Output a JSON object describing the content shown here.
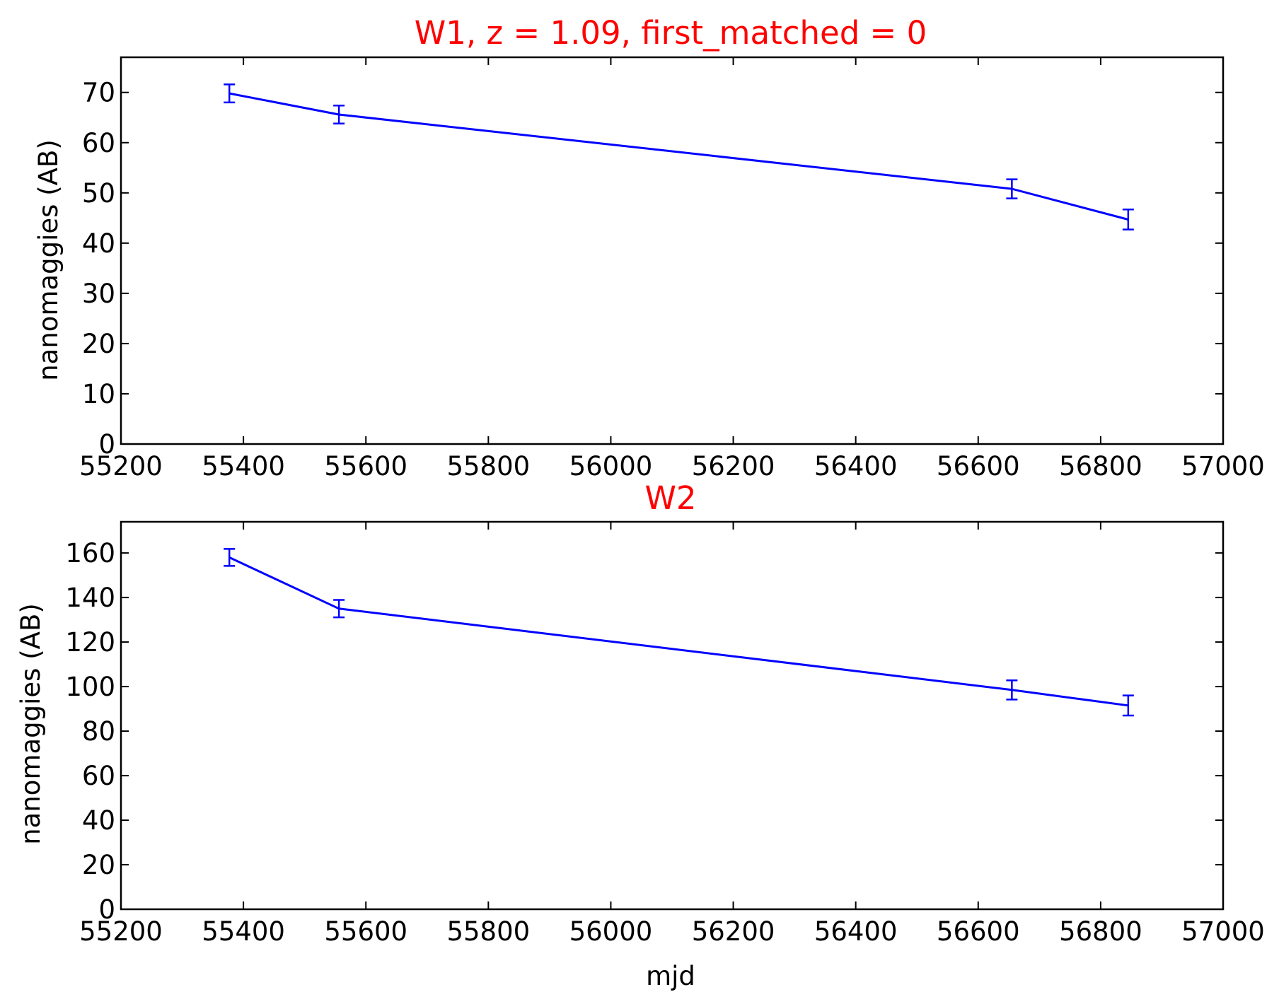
{
  "chart_data": [
    {
      "type": "line",
      "title": "W1, z = 1.09, first_matched = 0",
      "xlabel": "",
      "ylabel": "nanomaggies (AB)",
      "xlim": [
        55200,
        57000
      ],
      "ylim": [
        0,
        77
      ],
      "xticks": [
        55200,
        55400,
        55600,
        55800,
        56000,
        56200,
        56400,
        56600,
        56800,
        57000
      ],
      "yticks": [
        0,
        10,
        20,
        30,
        40,
        50,
        60,
        70
      ],
      "grid": false,
      "series": [
        {
          "x": [
            55377,
            55556,
            56655,
            56845
          ],
          "y": [
            69.8,
            65.6,
            50.8,
            44.7
          ],
          "yerr": [
            1.8,
            1.8,
            1.9,
            2.0
          ]
        }
      ]
    },
    {
      "type": "line",
      "title": "W2",
      "xlabel": "mjd",
      "ylabel": "nanomaggies (AB)",
      "xlim": [
        55200,
        57000
      ],
      "ylim": [
        0,
        174
      ],
      "xticks": [
        55200,
        55400,
        55600,
        55800,
        56000,
        56200,
        56400,
        56600,
        56800,
        57000
      ],
      "yticks": [
        0,
        20,
        40,
        60,
        80,
        100,
        120,
        140,
        160
      ],
      "grid": false,
      "series": [
        {
          "x": [
            55377,
            55556,
            56655,
            56845
          ],
          "y": [
            158,
            135,
            98.5,
            91.5
          ],
          "yerr": [
            3.8,
            3.9,
            4.3,
            4.5
          ]
        }
      ]
    }
  ],
  "colors": {
    "title": "#ff0000",
    "series": "#0000ff",
    "axes": "#000000"
  }
}
